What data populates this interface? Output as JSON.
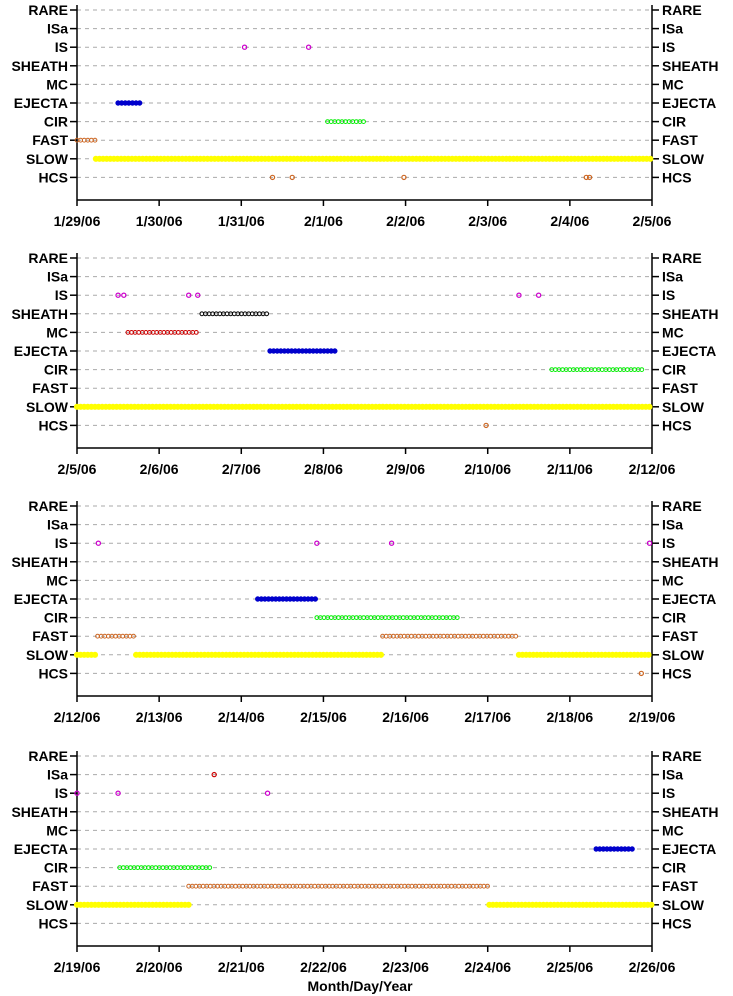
{
  "chart_data": {
    "type": "scatter",
    "xlabel": "Month/Day/Year",
    "categories": [
      "RARE",
      "ISa",
      "IS",
      "SHEATH",
      "MC",
      "EJECTA",
      "CIR",
      "FAST",
      "SLOW",
      "HCS"
    ],
    "colors": {
      "RARE": "#000000",
      "ISa": "#cc0000",
      "IS": "#cc00cc",
      "SHEATH": "#000000",
      "MC": "#cc0000",
      "EJECTA": "#0000cc",
      "CIR": "#00ee00",
      "FAST": "#cc6622",
      "SLOW": "#ffff00",
      "HCS": "#cc6622",
      "grid": "#aaaaaa"
    },
    "panels": [
      {
        "xlim": [
          0,
          7
        ],
        "tick_labels": [
          "1/29/06",
          "1/30/06",
          "1/31/06",
          "2/1/06",
          "2/2/06",
          "2/3/06",
          "2/4/06",
          "2/5/06"
        ],
        "intervals": [
          {
            "category": "FAST",
            "start": 0.0,
            "end": 0.22
          },
          {
            "category": "SLOW",
            "start": 0.23,
            "end": 7.0
          },
          {
            "category": "EJECTA",
            "start": 0.5,
            "end": 0.8
          },
          {
            "category": "CIR",
            "start": 3.05,
            "end": 3.5
          }
        ],
        "points": [
          {
            "category": "IS",
            "x": 2.04
          },
          {
            "category": "IS",
            "x": 2.82
          },
          {
            "category": "HCS",
            "x": 2.38
          },
          {
            "category": "HCS",
            "x": 2.62
          },
          {
            "category": "HCS",
            "x": 3.98
          },
          {
            "category": "HCS",
            "x": 6.2
          },
          {
            "category": "HCS",
            "x": 6.24
          }
        ]
      },
      {
        "xlim": [
          0,
          7
        ],
        "tick_labels": [
          "2/5/06",
          "2/6/06",
          "2/7/06",
          "2/8/06",
          "2/9/06",
          "2/10/06",
          "2/11/06",
          "2/12/06"
        ],
        "intervals": [
          {
            "category": "SLOW",
            "start": 0.0,
            "end": 7.0
          },
          {
            "category": "SHEATH",
            "start": 1.52,
            "end": 2.35
          },
          {
            "category": "MC",
            "start": 0.62,
            "end": 1.48
          },
          {
            "category": "EJECTA",
            "start": 2.35,
            "end": 3.18
          },
          {
            "category": "CIR",
            "start": 5.78,
            "end": 6.9
          }
        ],
        "points": [
          {
            "category": "IS",
            "x": 0.5
          },
          {
            "category": "IS",
            "x": 0.57
          },
          {
            "category": "IS",
            "x": 1.36
          },
          {
            "category": "IS",
            "x": 1.47
          },
          {
            "category": "IS",
            "x": 5.38
          },
          {
            "category": "IS",
            "x": 5.62
          },
          {
            "category": "HCS",
            "x": 4.98
          }
        ]
      },
      {
        "xlim": [
          0,
          7
        ],
        "tick_labels": [
          "2/12/06",
          "2/13/06",
          "2/14/06",
          "2/15/06",
          "2/16/06",
          "2/17/06",
          "2/18/06",
          "2/19/06"
        ],
        "intervals": [
          {
            "category": "SLOW",
            "start": 0.0,
            "end": 0.22
          },
          {
            "category": "SLOW",
            "start": 0.72,
            "end": 3.72
          },
          {
            "category": "SLOW",
            "start": 5.38,
            "end": 7.0
          },
          {
            "category": "FAST",
            "start": 0.25,
            "end": 0.72
          },
          {
            "category": "FAST",
            "start": 3.72,
            "end": 5.38
          },
          {
            "category": "EJECTA",
            "start": 2.2,
            "end": 2.92
          },
          {
            "category": "CIR",
            "start": 2.92,
            "end": 4.65
          }
        ],
        "points": [
          {
            "category": "IS",
            "x": 0.26
          },
          {
            "category": "IS",
            "x": 2.92
          },
          {
            "category": "IS",
            "x": 3.83
          },
          {
            "category": "IS",
            "x": 6.97
          },
          {
            "category": "HCS",
            "x": 6.87
          }
        ]
      },
      {
        "xlim": [
          0,
          7
        ],
        "tick_labels": [
          "2/19/06",
          "2/20/06",
          "2/21/06",
          "2/22/06",
          "2/23/06",
          "2/24/06",
          "2/25/06",
          "2/26/06"
        ],
        "intervals": [
          {
            "category": "SLOW",
            "start": 0.0,
            "end": 1.36
          },
          {
            "category": "SLOW",
            "start": 5.02,
            "end": 7.0
          },
          {
            "category": "FAST",
            "start": 1.36,
            "end": 5.02
          },
          {
            "category": "CIR",
            "start": 0.52,
            "end": 1.65
          },
          {
            "category": "EJECTA",
            "start": 6.32,
            "end": 6.8
          }
        ],
        "points": [
          {
            "category": "ISa",
            "x": 1.67
          },
          {
            "category": "IS",
            "x": 0.0
          },
          {
            "category": "IS",
            "x": 0.5
          },
          {
            "category": "IS",
            "x": 2.32
          }
        ]
      }
    ]
  }
}
